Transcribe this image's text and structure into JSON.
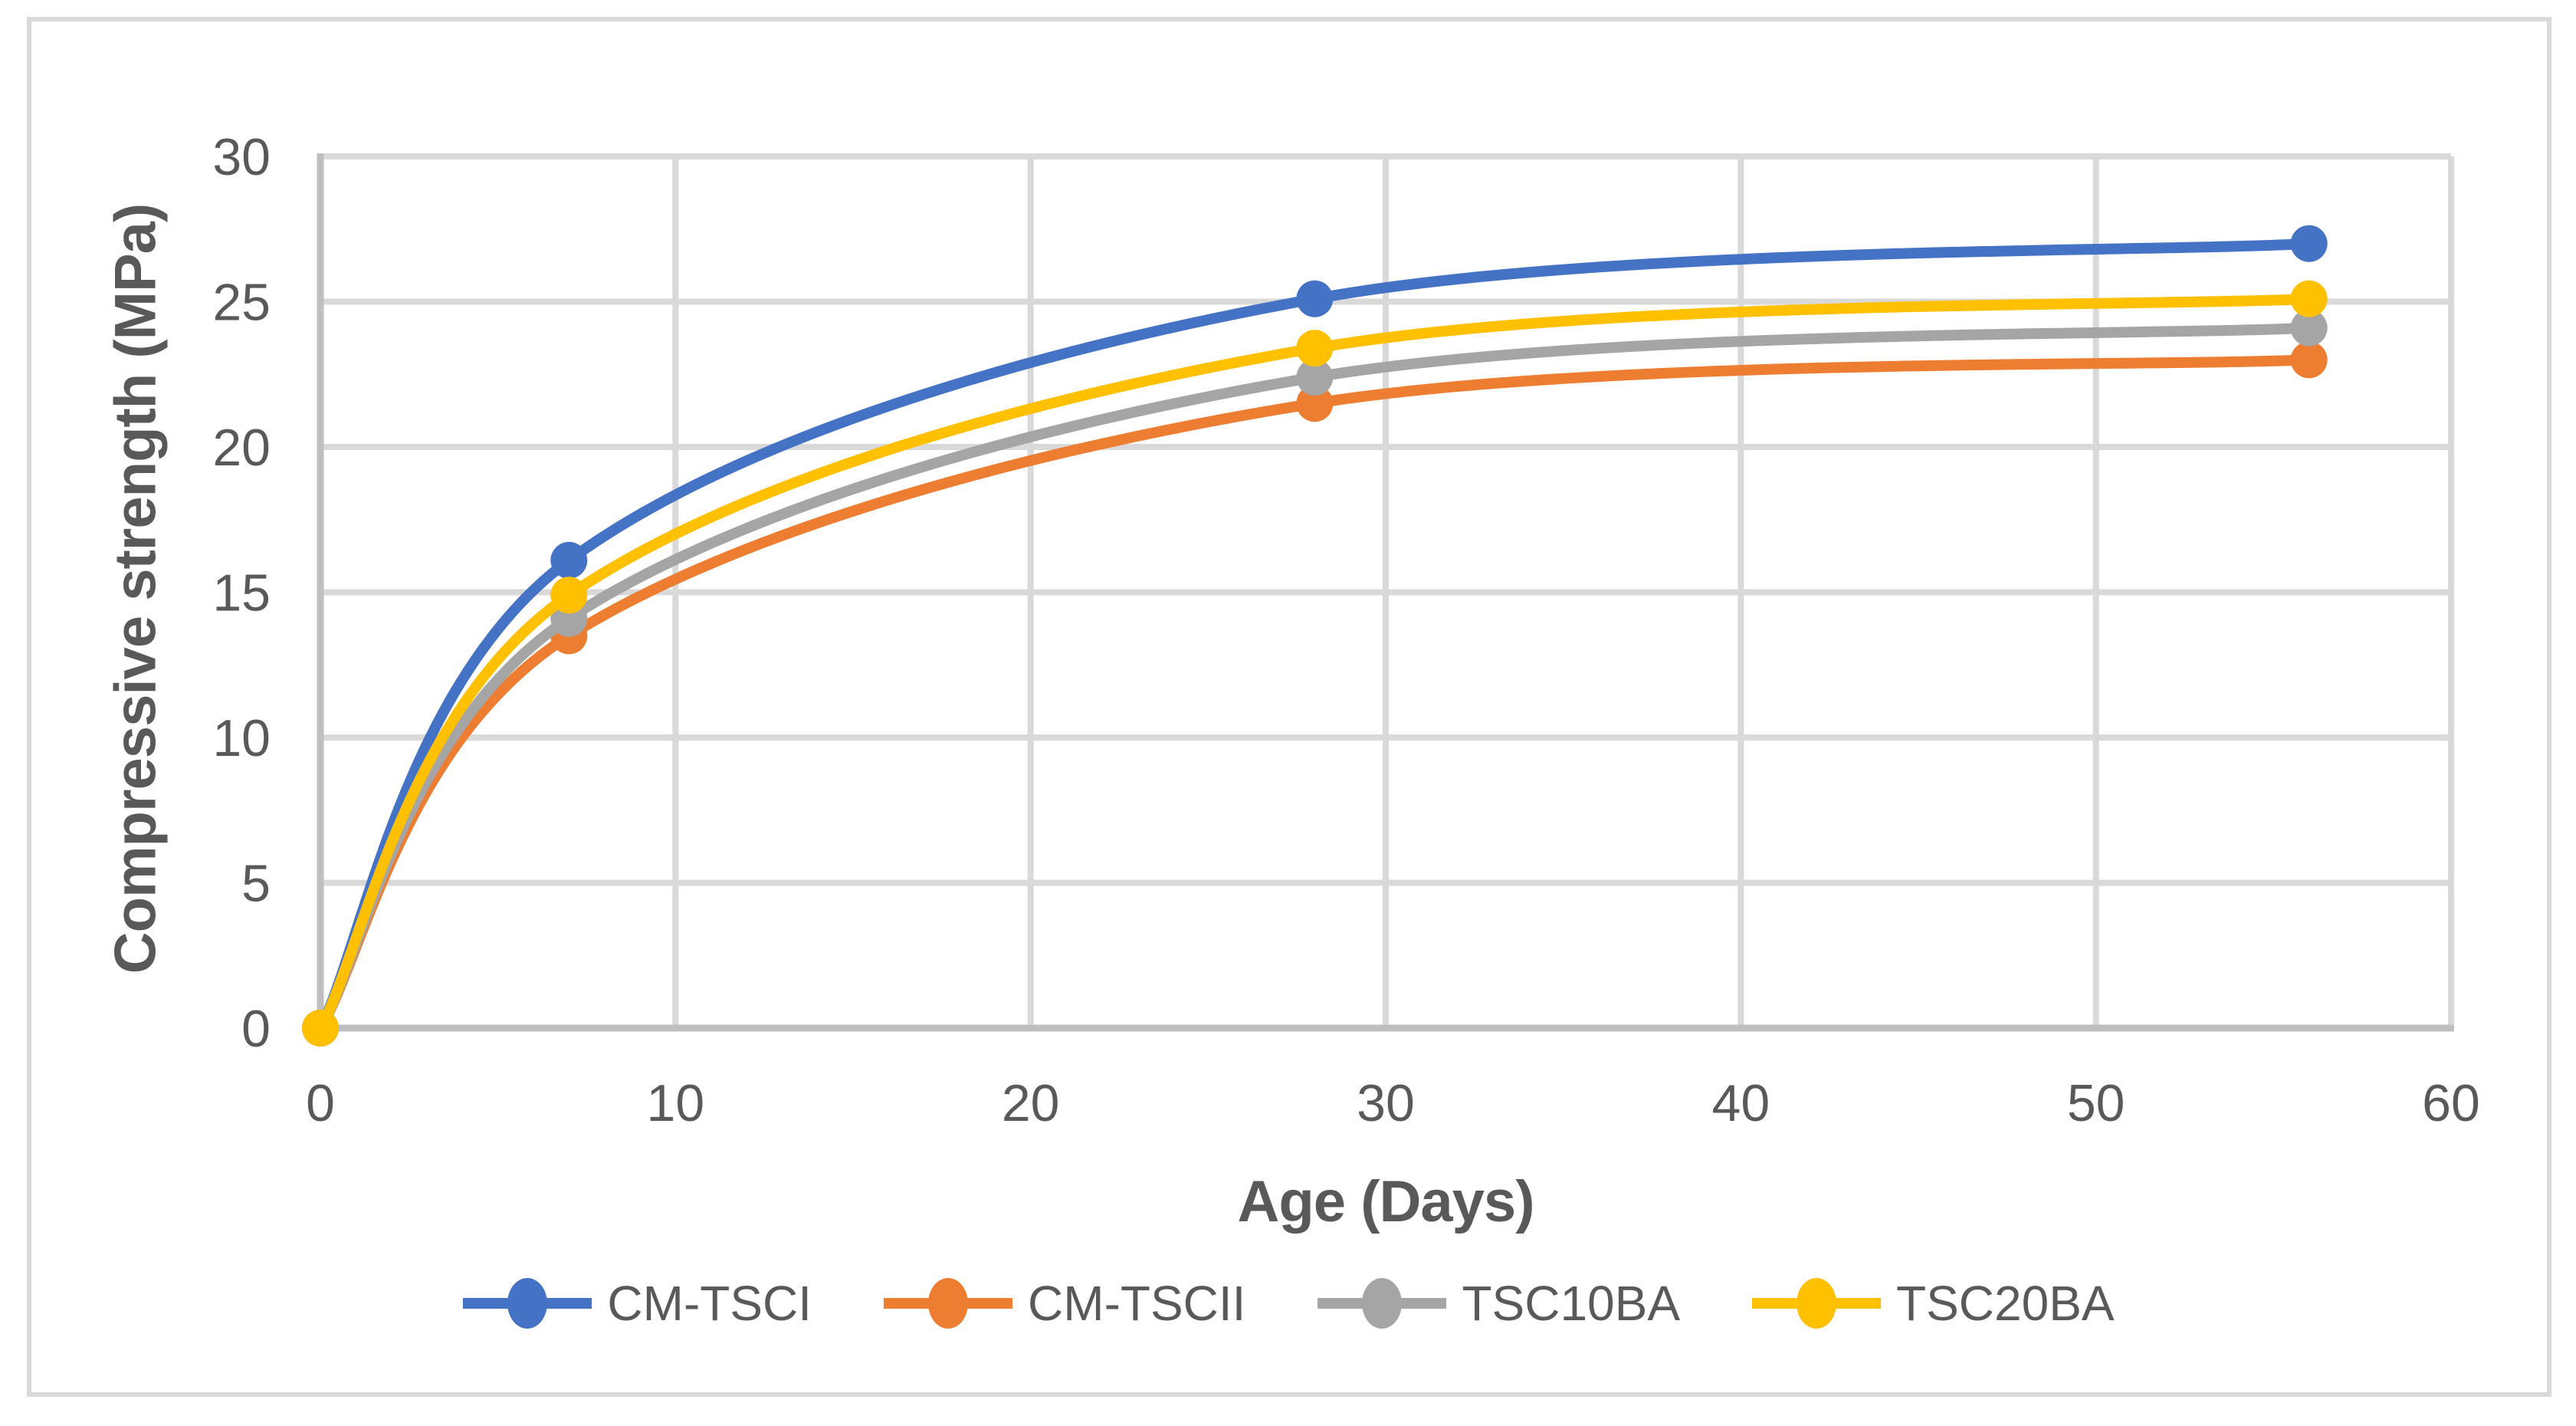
{
  "figure": {
    "background": "#FFFFFF",
    "border_color": "#D9D9D9"
  },
  "chart_data": {
    "type": "line",
    "title": "",
    "xlabel": "Age (Days)",
    "ylabel": "Compressive strength (MPa)",
    "x": [
      0,
      7,
      28,
      56
    ],
    "series": [
      {
        "name": "CM-TSCI",
        "color": "#4472C4",
        "values": [
          0,
          16.1,
          25.1,
          27.0
        ]
      },
      {
        "name": "CM-TSCII",
        "color": "#ED7D31",
        "values": [
          0,
          13.5,
          21.5,
          23.0
        ]
      },
      {
        "name": "TSC10BA",
        "color": "#A5A5A5",
        "values": [
          0,
          14.1,
          22.4,
          24.1
        ]
      },
      {
        "name": "TSC20BA",
        "color": "#FFC000",
        "values": [
          0,
          14.9,
          23.4,
          25.1
        ]
      }
    ],
    "xlim": [
      0,
      60
    ],
    "ylim": [
      0,
      30
    ],
    "x_ticks": [
      0,
      10,
      20,
      30,
      40,
      50,
      60
    ],
    "y_ticks": [
      0,
      5,
      10,
      15,
      20,
      25,
      30
    ],
    "grid": true,
    "smoothed": true,
    "legend_position": "bottom",
    "marker": "circle",
    "axis_text_color": "#595959",
    "gridline_color": "#D9D9D9",
    "axis_line_color": "#BFBFBF"
  }
}
